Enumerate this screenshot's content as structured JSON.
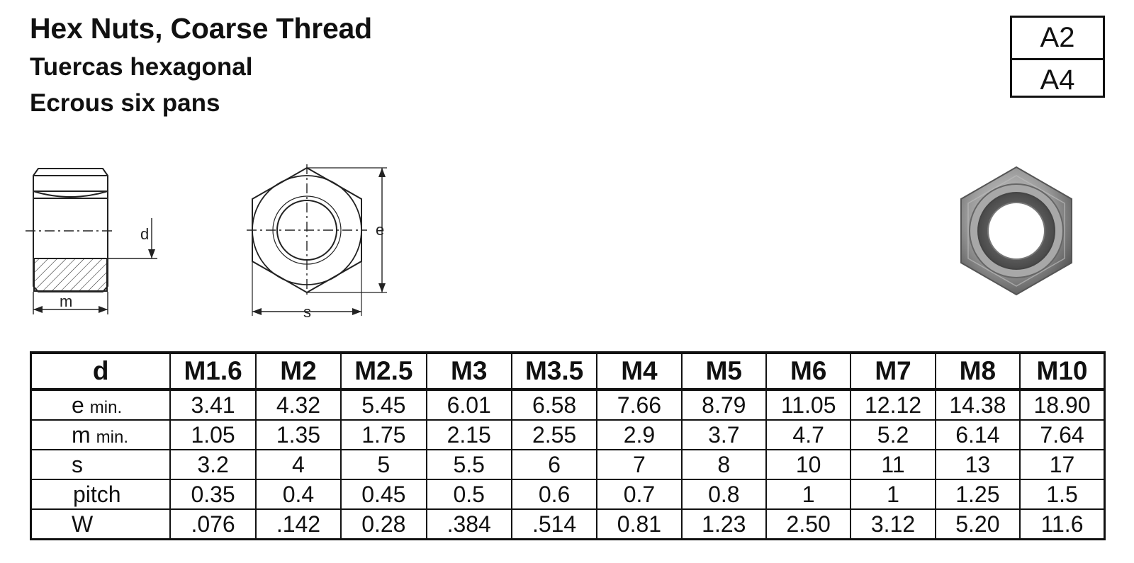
{
  "title": "Hex Nuts, Coarse Thread",
  "subtitle_es": "Tuercas hexagonal",
  "subtitle_fr": "Ecrous six pans",
  "grades": [
    "A2",
    "A4"
  ],
  "diagram_labels": {
    "d": "d",
    "m": "m",
    "e": "e",
    "s": "s"
  },
  "table": {
    "header_label": "d",
    "sizes": [
      "M1.6",
      "M2",
      "M2.5",
      "M3",
      "M3.5",
      "M4",
      "M5",
      "M6",
      "M7",
      "M8",
      "M10"
    ],
    "rows": [
      {
        "label": "e",
        "sub": "min.",
        "values": [
          "3.41",
          "4.32",
          "5.45",
          "6.01",
          "6.58",
          "7.66",
          "8.79",
          "11.05",
          "12.12",
          "14.38",
          "18.90"
        ]
      },
      {
        "label": "m",
        "sub": "min.",
        "values": [
          "1.05",
          "1.35",
          "1.75",
          "2.15",
          "2.55",
          "2.9",
          "3.7",
          "4.7",
          "5.2",
          "6.14",
          "7.64"
        ]
      },
      {
        "label": "s",
        "sub": "",
        "values": [
          "3.2",
          "4",
          "5",
          "5.5",
          "6",
          "7",
          "8",
          "10",
          "11",
          "13",
          "17"
        ]
      },
      {
        "label": "pitch",
        "sub": "",
        "values": [
          "0.35",
          "0.4",
          "0.45",
          "0.5",
          "0.6",
          "0.7",
          "0.8",
          "1",
          "1",
          "1.25",
          "1.5"
        ]
      },
      {
        "label": "W",
        "sub": "",
        "values": [
          ".076",
          ".142",
          "0.28",
          ".384",
          ".514",
          "0.81",
          "1.23",
          "2.50",
          "3.12",
          "5.20",
          "11.6"
        ]
      }
    ]
  }
}
